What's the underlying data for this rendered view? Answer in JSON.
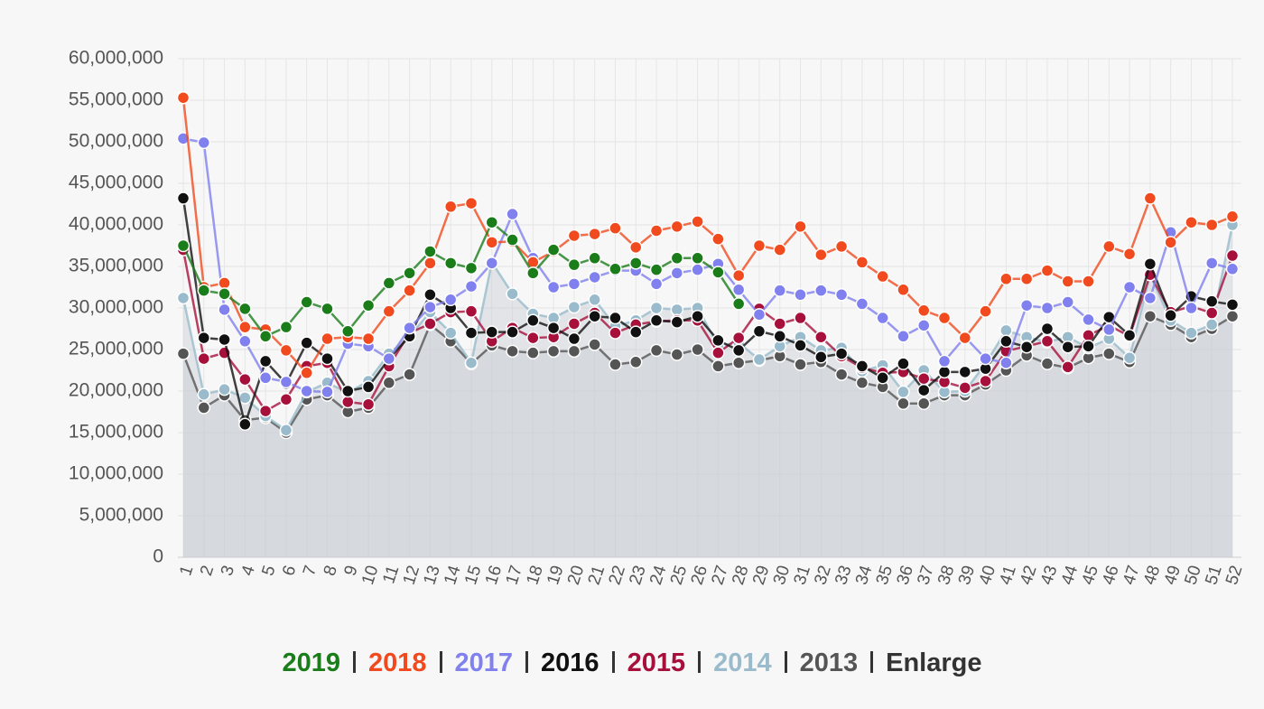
{
  "chart_data": {
    "type": "line",
    "categories": [
      1,
      2,
      3,
      4,
      5,
      6,
      7,
      8,
      9,
      10,
      11,
      12,
      13,
      14,
      15,
      16,
      17,
      18,
      19,
      20,
      21,
      22,
      23,
      24,
      25,
      26,
      27,
      28,
      29,
      30,
      31,
      32,
      33,
      34,
      35,
      36,
      37,
      38,
      39,
      40,
      41,
      42,
      43,
      44,
      45,
      46,
      47,
      48,
      49,
      50,
      51,
      52
    ],
    "ylim": [
      0,
      60000000
    ],
    "yticks": [
      0,
      {
        "value": 5000000,
        "label": "5,000,000"
      },
      {
        "value": 10000000,
        "label": "10,000,000"
      },
      {
        "value": 15000000,
        "label": "15,000,000"
      },
      {
        "value": 20000000,
        "label": "20,000,000"
      },
      {
        "value": 25000000,
        "label": "25,000,000"
      },
      {
        "value": 30000000,
        "label": "30,000,000"
      },
      {
        "value": 35000000,
        "label": "35,000,000"
      },
      {
        "value": 40000000,
        "label": "40,000,000"
      },
      {
        "value": 45000000,
        "label": "45,000,000"
      },
      {
        "value": 50000000,
        "label": "50,000,000"
      },
      {
        "value": 55000000,
        "label": "55,000,000"
      },
      {
        "value": 60000000,
        "label": "60,000,000"
      }
    ],
    "grid": true,
    "series": [
      {
        "name": "2019",
        "color": "#1a7d1a",
        "values": [
          37500000,
          32100000,
          31700000,
          29900000,
          26600000,
          27700000,
          30700000,
          29900000,
          27200000,
          30300000,
          33000000,
          34200000,
          36800000,
          35400000,
          34800000,
          40300000,
          38200000,
          34200000,
          37000000,
          35200000,
          36000000,
          34700000,
          35400000,
          34600000,
          36000000,
          36000000,
          34300000,
          30500000,
          null,
          null,
          null,
          null,
          null,
          null,
          null,
          null,
          null,
          null,
          null,
          null,
          null,
          null,
          null,
          null,
          null,
          null,
          null,
          null,
          null,
          null,
          null,
          null
        ]
      },
      {
        "name": "2018",
        "color": "#f04a1e",
        "values": [
          55300000,
          32500000,
          33000000,
          27700000,
          27400000,
          24900000,
          22200000,
          26300000,
          26500000,
          26300000,
          29600000,
          32100000,
          35400000,
          42200000,
          42600000,
          37900000,
          38000000,
          35500000,
          36800000,
          38700000,
          38900000,
          39600000,
          37300000,
          39300000,
          39800000,
          40400000,
          38300000,
          33900000,
          37500000,
          37000000,
          39800000,
          36400000,
          37400000,
          35500000,
          33800000,
          32200000,
          29700000,
          28800000,
          26400000,
          29600000,
          33500000,
          33500000,
          34500000,
          33200000,
          33200000,
          37400000,
          36500000,
          43200000,
          37900000,
          40300000,
          40000000,
          41000000
        ]
      },
      {
        "name": "2017",
        "color": "#8080ee",
        "values": [
          50400000,
          49900000,
          29800000,
          26000000,
          21600000,
          21100000,
          20000000,
          19900000,
          25700000,
          25400000,
          23900000,
          27600000,
          30100000,
          31000000,
          32600000,
          35400000,
          41300000,
          36000000,
          32500000,
          32900000,
          33700000,
          34500000,
          34500000,
          32900000,
          34200000,
          34600000,
          35300000,
          32200000,
          29200000,
          32100000,
          31600000,
          32100000,
          31600000,
          30500000,
          28800000,
          26600000,
          27900000,
          23600000,
          26500000,
          23900000,
          23400000,
          30300000,
          30000000,
          30700000,
          28600000,
          27400000,
          32500000,
          31200000,
          39100000,
          30000000,
          35400000,
          34700000
        ]
      },
      {
        "name": "2016",
        "color": "#111111",
        "values": [
          43200000,
          26400000,
          26200000,
          16000000,
          23600000,
          20900000,
          25800000,
          23900000,
          20000000,
          20500000,
          23900000,
          26600000,
          31600000,
          30000000,
          27000000,
          27100000,
          27100000,
          28500000,
          27600000,
          26300000,
          29000000,
          28800000,
          27100000,
          28500000,
          28300000,
          29000000,
          26100000,
          24900000,
          27200000,
          26600000,
          25500000,
          24100000,
          24500000,
          23000000,
          21600000,
          23300000,
          20100000,
          22300000,
          22300000,
          22700000,
          26000000,
          25300000,
          27500000,
          25300000,
          25400000,
          28900000,
          26700000,
          35300000,
          29100000,
          31400000,
          30800000,
          30400000
        ]
      },
      {
        "name": "2015",
        "color": "#a8103c",
        "values": [
          37000000,
          23900000,
          24600000,
          21400000,
          17600000,
          19000000,
          23000000,
          23400000,
          18700000,
          18400000,
          23000000,
          27000000,
          28100000,
          29500000,
          29600000,
          26000000,
          27600000,
          26400000,
          26500000,
          28100000,
          29400000,
          27000000,
          28000000,
          28400000,
          28500000,
          28500000,
          24600000,
          26400000,
          29900000,
          28100000,
          28800000,
          26500000,
          24200000,
          22800000,
          22200000,
          22300000,
          21500000,
          21100000,
          20400000,
          21200000,
          24800000,
          25400000,
          26000000,
          22900000,
          26700000,
          27900000,
          26600000,
          34000000,
          29500000,
          30200000,
          29400000,
          36300000
        ]
      },
      {
        "name": "2014",
        "color": "#99bbcc",
        "area": true,
        "values": [
          31200000,
          19600000,
          20200000,
          19200000,
          17000000,
          15300000,
          19900000,
          21000000,
          19800000,
          21200000,
          24500000,
          26600000,
          29500000,
          27000000,
          23400000,
          35500000,
          31700000,
          29300000,
          28800000,
          30100000,
          31000000,
          27800000,
          28500000,
          30000000,
          29800000,
          30000000,
          25500000,
          25800000,
          23800000,
          25400000,
          26500000,
          24900000,
          25200000,
          22400000,
          23100000,
          19900000,
          22500000,
          19900000,
          20000000,
          23300000,
          27300000,
          26500000,
          25900000,
          26500000,
          25200000,
          26300000,
          24000000,
          34000000,
          28500000,
          27000000,
          28000000,
          40000000
        ]
      },
      {
        "name": "2013",
        "color": "#555555",
        "area": true,
        "values": [
          24500000,
          18000000,
          19500000,
          16500000,
          16800000,
          15000000,
          19000000,
          19500000,
          17500000,
          18000000,
          21000000,
          22000000,
          28000000,
          26000000,
          23300000,
          25500000,
          24800000,
          24600000,
          24800000,
          24800000,
          25600000,
          23200000,
          23500000,
          24900000,
          24400000,
          25000000,
          23000000,
          23400000,
          23700000,
          24200000,
          23200000,
          23500000,
          22000000,
          21000000,
          20500000,
          18500000,
          18500000,
          19500000,
          19500000,
          20800000,
          22500000,
          24300000,
          23300000,
          22800000,
          24000000,
          24500000,
          23500000,
          29000000,
          28000000,
          26500000,
          27500000,
          29000000
        ]
      }
    ]
  },
  "enlarge_link": "Enlarge"
}
